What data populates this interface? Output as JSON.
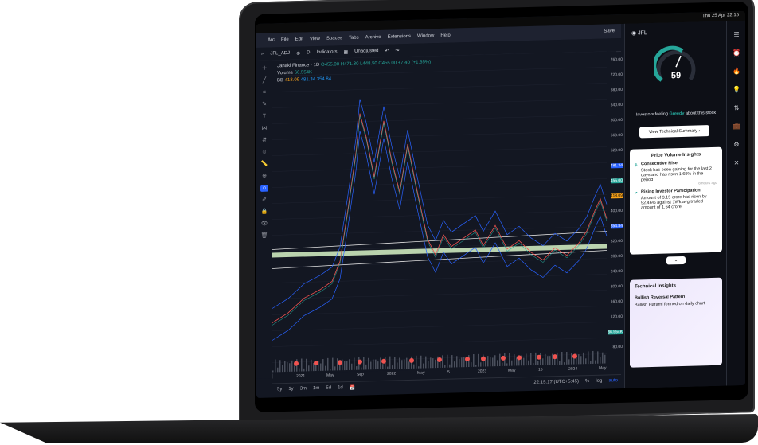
{
  "macbar": {
    "clock": "Thu 25 Apr  22:15"
  },
  "menubar": {
    "items": [
      "Arc",
      "File",
      "Edit",
      "View",
      "Spaces",
      "Tabs",
      "Archive",
      "Extensions",
      "Window",
      "Help"
    ]
  },
  "toolbar": {
    "symbol": "JFL_ADJ",
    "interval": "D",
    "indicators": "Indicators",
    "unadjusted": "Unadjusted",
    "save": "Save"
  },
  "legend": {
    "title": "Janaki Finance · 1D",
    "ohlc": "O455.00 H471.30 L448.50 C455.00 +7.40 (+1.65%)",
    "volume_label": "Volume",
    "volume_value": "66.554K",
    "bb_label": "BB",
    "bb_vals": [
      "418.09",
      "481.34",
      "354.84"
    ]
  },
  "price_axis": [
    "760.00",
    "720.00",
    "680.00",
    "640.00",
    "600.00",
    "560.00",
    "520.00",
    "481.34",
    "455.00",
    "418.09",
    "400.00",
    "354.84",
    "320.00",
    "280.00",
    "240.00",
    "200.00",
    "160.00",
    "120.00",
    "66.554K",
    "80.00"
  ],
  "time_axis": [
    "2021",
    "May",
    "Sep",
    "2022",
    "May",
    "5",
    "2023",
    "May",
    "15",
    "2024",
    "May"
  ],
  "bottom": {
    "ranges": [
      "5y",
      "1y",
      "3m",
      "1m",
      "5d",
      "1d"
    ],
    "time": "22:15:17 (UTC+5:45)",
    "pct": "%",
    "log": "log",
    "auto": "auto"
  },
  "side": {
    "ticker": "JFL",
    "score": "59",
    "sentiment_prefix": "Investors feeling",
    "sentiment": "Greedy",
    "sentiment_suffix": "about this stock",
    "summary_button": "View Technical Summary",
    "card_title": "Price Volume Insights",
    "insights": [
      {
        "title": "Consecutive Rise",
        "text": "Stock has been gaining for the last 2 days and has risen 1.65% in the period",
        "ago": "8 hours ago"
      },
      {
        "title": "Rising Investor Participation",
        "text": "Amount of 3.15 crore has risen by 92.46% against 1Wk avg traded amount of 1.64 crore"
      }
    ],
    "tech_title": "Technical Insights",
    "tech_item_title": "Bullish Reversal Pattern",
    "tech_item_text": "Bullish Harami formed on daily chart"
  },
  "colors": {
    "up": "#26a69a",
    "down": "#ef5350",
    "bb": "#2962ff",
    "accent_orange": "#f7a21b"
  }
}
